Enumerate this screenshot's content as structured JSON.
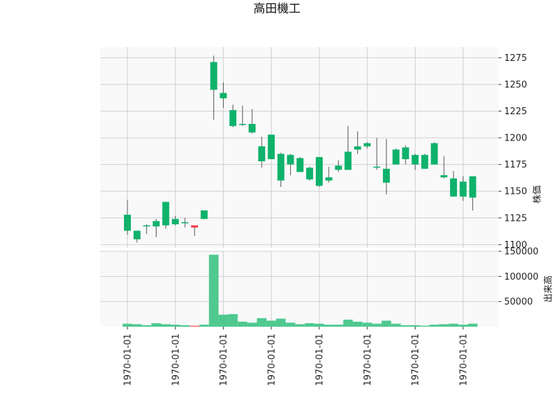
{
  "chart_data": {
    "type": "candlestick",
    "title": "高田機工",
    "price_axis": {
      "label": "株価",
      "ticks": [
        1100,
        1125,
        1150,
        1175,
        1200,
        1225,
        1250,
        1275
      ],
      "range": [
        1097,
        1285
      ]
    },
    "volume_axis": {
      "label": "出来高",
      "ticks": [
        50000,
        100000,
        150000
      ],
      "tick_labels": [
        "50000",
        "100000",
        "150000"
      ],
      "range": [
        0,
        150000
      ]
    },
    "x_tick_labels": [
      "1970-01-01",
      "1970-01-01",
      "1970-01-01",
      "1970-01-01",
      "1970-01-01",
      "1970-01-01",
      "1970-01-01",
      "1970-01-01"
    ],
    "x_tick_candle_index": [
      0,
      5,
      10,
      15,
      20,
      25,
      30,
      35
    ],
    "colors": {
      "up": "#0fb26b",
      "down": "#fb3640",
      "up_volume": "#4fc990",
      "down_volume": "#fc6a70",
      "wick": "#555555"
    },
    "candles": [
      {
        "open": 1113,
        "close": 1128,
        "high": 1142,
        "low": 1109,
        "volume": 6000
      },
      {
        "open": 1105,
        "close": 1113,
        "high": 1113,
        "low": 1102,
        "volume": 5000
      },
      {
        "open": 1117,
        "close": 1118,
        "high": 1119,
        "low": 1110,
        "volume": 3000
      },
      {
        "open": 1117,
        "close": 1122,
        "high": 1124,
        "low": 1107,
        "volume": 7000
      },
      {
        "open": 1118,
        "close": 1140,
        "high": 1140,
        "low": 1115,
        "volume": 5000
      },
      {
        "open": 1119,
        "close": 1124,
        "high": 1127,
        "low": 1118,
        "volume": 4000
      },
      {
        "open": 1120,
        "close": 1121,
        "high": 1125,
        "low": 1116,
        "volume": 3000
      },
      {
        "open": 1118,
        "close": 1116,
        "high": 1118,
        "low": 1108,
        "volume": 2000
      },
      {
        "open": 1124,
        "close": 1132,
        "high": 1132,
        "low": 1124,
        "volume": 4000
      },
      {
        "open": 1245,
        "close": 1271,
        "high": 1277,
        "low": 1217,
        "volume": 143000
      },
      {
        "open": 1237,
        "close": 1242,
        "high": 1252,
        "low": 1228,
        "volume": 24000
      },
      {
        "open": 1211,
        "close": 1226,
        "high": 1231,
        "low": 1210,
        "volume": 25000
      },
      {
        "open": 1212,
        "close": 1213,
        "high": 1230,
        "low": 1211,
        "volume": 10000
      },
      {
        "open": 1205,
        "close": 1213,
        "high": 1227,
        "low": 1204,
        "volume": 8000
      },
      {
        "open": 1178,
        "close": 1192,
        "high": 1201,
        "low": 1172,
        "volume": 17000
      },
      {
        "open": 1180,
        "close": 1203,
        "high": 1203,
        "low": 1180,
        "volume": 12000
      },
      {
        "open": 1160,
        "close": 1185,
        "high": 1186,
        "low": 1154,
        "volume": 16000
      },
      {
        "open": 1175,
        "close": 1184,
        "high": 1185,
        "low": 1165,
        "volume": 8000
      },
      {
        "open": 1168,
        "close": 1181,
        "high": 1182,
        "low": 1168,
        "volume": 5000
      },
      {
        "open": 1161,
        "close": 1172,
        "high": 1173,
        "low": 1160,
        "volume": 7000
      },
      {
        "open": 1155,
        "close": 1182,
        "high": 1182,
        "low": 1154,
        "volume": 6000
      },
      {
        "open": 1160,
        "close": 1163,
        "high": 1173,
        "low": 1158,
        "volume": 4000
      },
      {
        "open": 1170,
        "close": 1174,
        "high": 1179,
        "low": 1168,
        "volume": 4000
      },
      {
        "open": 1170,
        "close": 1187,
        "high": 1211,
        "low": 1170,
        "volume": 14000
      },
      {
        "open": 1189,
        "close": 1192,
        "high": 1206,
        "low": 1185,
        "volume": 10000
      },
      {
        "open": 1192,
        "close": 1195,
        "high": 1196,
        "low": 1190,
        "volume": 8000
      },
      {
        "open": 1172,
        "close": 1173,
        "high": 1200,
        "low": 1170,
        "volume": 6000
      },
      {
        "open": 1158,
        "close": 1171,
        "high": 1199,
        "low": 1147,
        "volume": 12000
      },
      {
        "open": 1175,
        "close": 1189,
        "high": 1190,
        "low": 1175,
        "volume": 6000
      },
      {
        "open": 1180,
        "close": 1191,
        "high": 1193,
        "low": 1175,
        "volume": 3000
      },
      {
        "open": 1175,
        "close": 1184,
        "high": 1185,
        "low": 1170,
        "volume": 3000
      },
      {
        "open": 1171,
        "close": 1184,
        "high": 1185,
        "low": 1171,
        "volume": 2000
      },
      {
        "open": 1175,
        "close": 1195,
        "high": 1196,
        "low": 1175,
        "volume": 4000
      },
      {
        "open": 1163,
        "close": 1165,
        "high": 1183,
        "low": 1162,
        "volume": 5000
      },
      {
        "open": 1145,
        "close": 1162,
        "high": 1169,
        "low": 1145,
        "volume": 6000
      },
      {
        "open": 1145,
        "close": 1159,
        "high": 1164,
        "low": 1141,
        "volume": 4000
      },
      {
        "open": 1144,
        "close": 1164,
        "high": 1164,
        "low": 1132,
        "volume": 6000
      }
    ]
  }
}
